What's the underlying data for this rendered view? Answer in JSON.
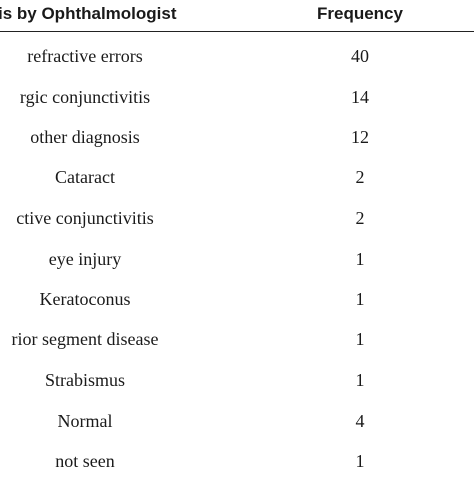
{
  "table": {
    "header": {
      "diagnosis": "is by Ophthalmologist",
      "frequency": "Frequency"
    },
    "rows": [
      {
        "diagnosis": "refractive errors",
        "frequency": "40"
      },
      {
        "diagnosis": "rgic conjunctivitis",
        "frequency": "14"
      },
      {
        "diagnosis": "other diagnosis",
        "frequency": "12"
      },
      {
        "diagnosis": "Cataract",
        "frequency": "2"
      },
      {
        "diagnosis": "ctive conjunctivitis",
        "frequency": "2"
      },
      {
        "diagnosis": "eye injury",
        "frequency": "1"
      },
      {
        "diagnosis": "Keratoconus",
        "frequency": "1"
      },
      {
        "diagnosis": "rior segment disease",
        "frequency": "1"
      },
      {
        "diagnosis": "Strabismus",
        "frequency": "1"
      },
      {
        "diagnosis": "Normal",
        "frequency": "4"
      },
      {
        "diagnosis": "not seen",
        "frequency": "1"
      }
    ]
  }
}
